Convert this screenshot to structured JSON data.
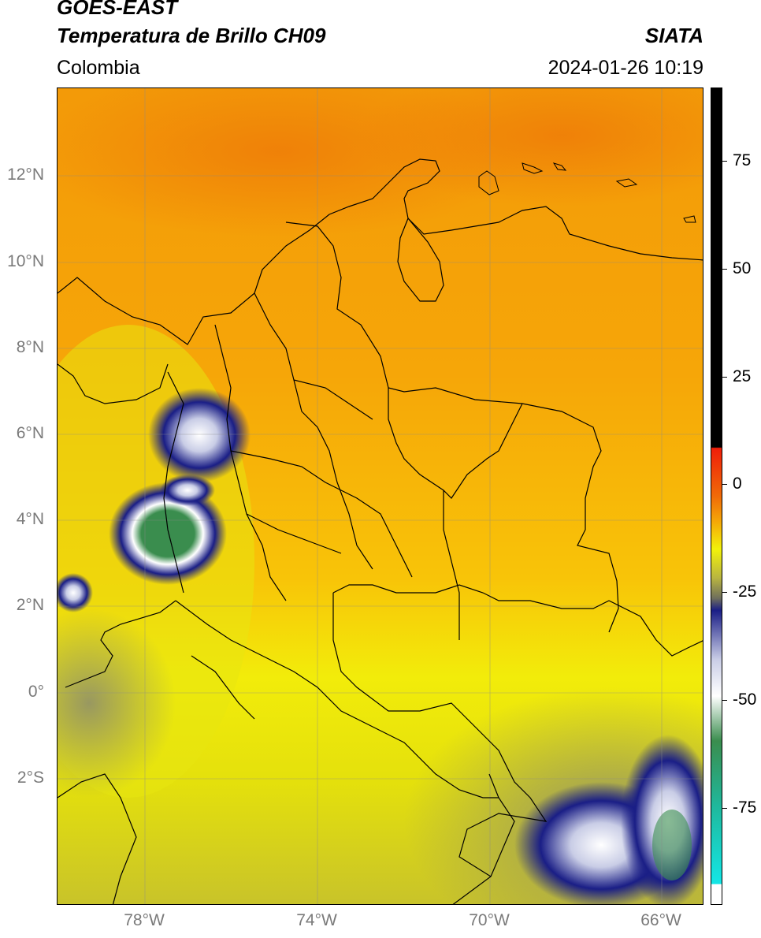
{
  "header": {
    "title_line1": "GOES-EAST",
    "title_line2": "Temperatura de Brillo CH09",
    "region": "Colombia",
    "organization": "SIATA",
    "datetime": "2024-01-26 10:19"
  },
  "map": {
    "lat_ticks": [
      "12°N",
      "10°N",
      "8°N",
      "6°N",
      "4°N",
      "2°N",
      "0°",
      "2°S"
    ],
    "lon_ticks": [
      "78°W",
      "74°W",
      "70°W",
      "66°W"
    ],
    "grid": true
  },
  "colorbar": {
    "ticks": [
      "75",
      "50",
      "25",
      "0",
      "-25",
      "-50",
      "-75"
    ],
    "colors": {
      "black": "#000000",
      "red": "#f01e0a",
      "orange": "#f59a08",
      "yellow": "#f2f20a",
      "olive": "#b9b540",
      "gray": "#6f6f5c",
      "navy": "#1a1e86",
      "white": "#ffffff",
      "green": "#3a8d4e",
      "teal": "#1fb89c",
      "cyan": "#14e6e6"
    }
  }
}
